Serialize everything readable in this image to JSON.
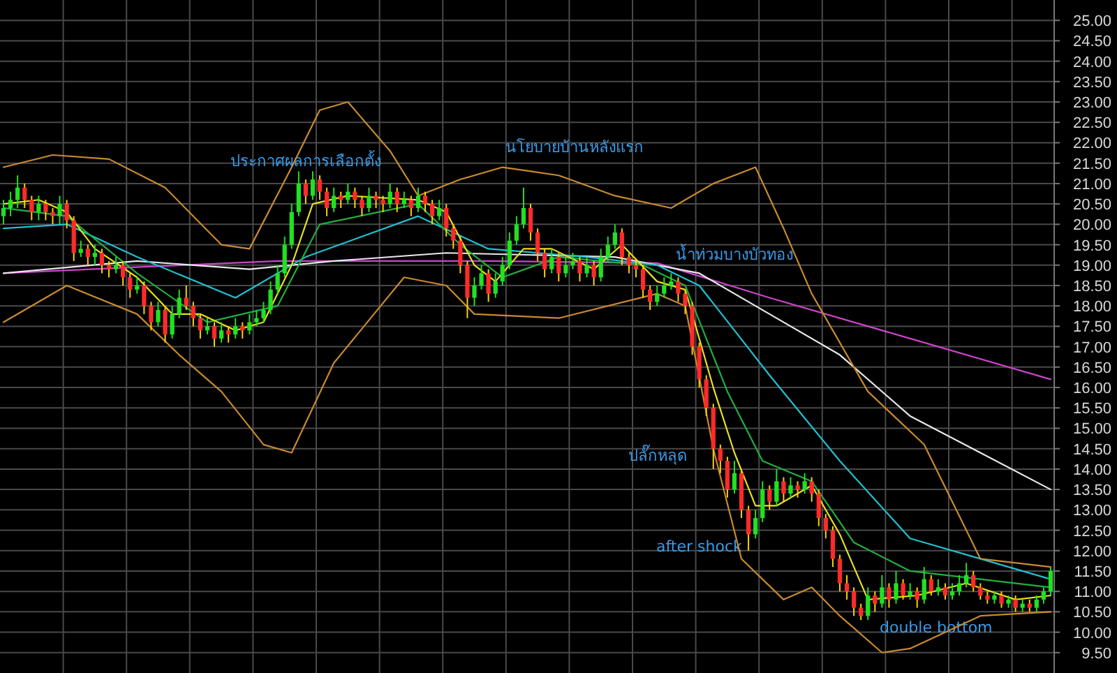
{
  "chart_data": {
    "type": "candlestick",
    "tick_labels": "y",
    "grid": true,
    "categories": [
      null,
      null,
      null,
      null,
      null,
      null,
      null,
      null,
      null,
      null,
      null,
      null,
      null,
      null,
      null,
      null,
      null,
      null,
      null,
      null,
      null,
      null,
      null,
      null,
      null,
      null,
      null,
      null,
      null,
      null,
      null,
      null,
      null,
      null,
      null,
      null,
      null,
      null,
      null,
      null,
      null,
      null,
      null,
      null,
      null,
      null,
      null,
      null,
      null,
      null,
      null,
      null,
      null,
      null,
      null,
      null,
      null,
      null,
      null,
      null,
      null,
      null,
      null,
      null,
      null,
      null,
      null,
      null,
      null,
      null,
      null,
      null,
      null,
      null,
      null,
      null,
      null,
      null,
      null,
      null,
      null,
      null,
      null,
      null,
      null,
      null,
      null,
      null,
      null,
      null,
      null,
      null,
      null,
      null,
      null,
      null,
      null,
      null,
      null,
      null,
      null,
      null,
      null,
      null,
      null,
      null,
      null,
      null,
      null,
      null,
      null,
      null,
      null,
      null,
      null,
      null,
      null,
      null,
      null,
      null,
      null,
      null,
      null,
      null,
      null,
      null,
      null,
      null,
      null,
      null,
      null,
      null,
      null,
      null,
      null,
      null,
      null,
      null,
      null,
      null,
      null,
      null,
      null,
      null,
      null,
      null,
      null,
      null,
      null,
      null
    ],
    "ohlc": [
      [
        20.2,
        20.6,
        20.0,
        20.4
      ],
      [
        20.4,
        20.8,
        20.2,
        20.6
      ],
      [
        20.6,
        21.2,
        20.4,
        20.9
      ],
      [
        20.9,
        21.0,
        20.4,
        20.6
      ],
      [
        20.6,
        20.7,
        20.1,
        20.3
      ],
      [
        20.3,
        20.7,
        20.1,
        20.5
      ],
      [
        20.5,
        20.6,
        20.1,
        20.3
      ],
      [
        20.3,
        20.4,
        20.0,
        20.2
      ],
      [
        20.2,
        20.7,
        20.0,
        20.5
      ],
      [
        20.5,
        20.6,
        19.9,
        20.1
      ],
      [
        20.1,
        20.2,
        19.1,
        19.3
      ],
      [
        19.3,
        19.6,
        19.2,
        19.4
      ],
      [
        19.4,
        19.5,
        19.0,
        19.2
      ],
      [
        19.2,
        19.5,
        19.0,
        19.3
      ],
      [
        19.3,
        19.4,
        18.8,
        19.0
      ],
      [
        19.0,
        19.1,
        18.7,
        18.9
      ],
      [
        18.9,
        19.2,
        18.8,
        19.0
      ],
      [
        19.0,
        19.1,
        18.5,
        18.7
      ],
      [
        18.7,
        18.8,
        18.2,
        18.4
      ],
      [
        18.4,
        18.7,
        18.3,
        18.5
      ],
      [
        18.5,
        18.6,
        17.8,
        18.0
      ],
      [
        18.0,
        18.1,
        17.4,
        17.6
      ],
      [
        17.6,
        18.1,
        17.5,
        17.9
      ],
      [
        17.9,
        18.0,
        17.1,
        17.3
      ],
      [
        17.3,
        18.0,
        17.2,
        17.8
      ],
      [
        17.8,
        18.4,
        17.7,
        18.2
      ],
      [
        18.2,
        18.5,
        17.9,
        18.0
      ],
      [
        18.0,
        18.1,
        17.5,
        17.7
      ],
      [
        17.7,
        17.8,
        17.2,
        17.4
      ],
      [
        17.4,
        17.7,
        17.3,
        17.5
      ],
      [
        17.5,
        17.6,
        17.0,
        17.2
      ],
      [
        17.2,
        17.6,
        17.1,
        17.4
      ],
      [
        17.4,
        17.5,
        17.1,
        17.3
      ],
      [
        17.3,
        17.7,
        17.2,
        17.5
      ],
      [
        17.5,
        17.6,
        17.2,
        17.4
      ],
      [
        17.4,
        17.8,
        17.3,
        17.6
      ],
      [
        17.6,
        17.9,
        17.5,
        17.7
      ],
      [
        17.7,
        18.1,
        17.6,
        17.9
      ],
      [
        17.9,
        18.6,
        17.8,
        18.4
      ],
      [
        18.4,
        19.0,
        18.3,
        18.8
      ],
      [
        18.8,
        19.7,
        18.7,
        19.5
      ],
      [
        19.5,
        20.5,
        19.4,
        20.3
      ],
      [
        20.3,
        21.3,
        20.2,
        21.0
      ],
      [
        21.0,
        21.1,
        20.5,
        20.7
      ],
      [
        20.7,
        21.3,
        20.6,
        21.1
      ],
      [
        21.1,
        21.2,
        20.6,
        20.8
      ],
      [
        20.8,
        20.9,
        20.2,
        20.4
      ],
      [
        20.4,
        20.9,
        20.3,
        20.7
      ],
      [
        20.7,
        20.8,
        20.4,
        20.6
      ],
      [
        20.6,
        21.0,
        20.5,
        20.8
      ],
      [
        20.8,
        20.9,
        20.4,
        20.6
      ],
      [
        20.6,
        20.7,
        20.2,
        20.4
      ],
      [
        20.4,
        20.9,
        20.3,
        20.7
      ],
      [
        20.7,
        20.8,
        20.4,
        20.6
      ],
      [
        20.6,
        20.7,
        20.3,
        20.5
      ],
      [
        20.5,
        21.0,
        20.4,
        20.8
      ],
      [
        20.8,
        20.9,
        20.3,
        20.5
      ],
      [
        20.5,
        20.8,
        20.4,
        20.6
      ],
      [
        20.6,
        20.7,
        20.2,
        20.4
      ],
      [
        20.4,
        20.9,
        20.3,
        20.7
      ],
      [
        20.7,
        20.8,
        20.3,
        20.5
      ],
      [
        20.5,
        20.6,
        20.0,
        20.2
      ],
      [
        20.2,
        20.6,
        20.1,
        20.4
      ],
      [
        20.4,
        20.5,
        19.7,
        19.9
      ],
      [
        19.9,
        20.0,
        19.4,
        19.6
      ],
      [
        19.6,
        19.7,
        18.8,
        19.0
      ],
      [
        19.0,
        19.1,
        17.7,
        18.2
      ],
      [
        18.2,
        18.7,
        18.0,
        18.5
      ],
      [
        18.5,
        19.0,
        18.4,
        18.8
      ],
      [
        18.8,
        18.9,
        18.1,
        18.3
      ],
      [
        18.3,
        18.8,
        18.2,
        18.6
      ],
      [
        18.6,
        19.2,
        18.5,
        19.0
      ],
      [
        19.0,
        19.8,
        18.9,
        19.6
      ],
      [
        19.6,
        20.2,
        19.5,
        20.0
      ],
      [
        20.0,
        20.9,
        19.9,
        20.4
      ],
      [
        20.4,
        20.5,
        19.6,
        19.8
      ],
      [
        19.8,
        19.9,
        19.1,
        19.3
      ],
      [
        19.3,
        19.4,
        18.7,
        18.9
      ],
      [
        18.9,
        19.4,
        18.8,
        19.2
      ],
      [
        19.2,
        19.3,
        18.6,
        18.8
      ],
      [
        18.8,
        19.2,
        18.7,
        19.0
      ],
      [
        19.0,
        19.3,
        18.9,
        19.1
      ],
      [
        19.1,
        19.2,
        18.6,
        18.8
      ],
      [
        18.8,
        19.2,
        18.7,
        19.0
      ],
      [
        19.0,
        19.1,
        18.5,
        18.7
      ],
      [
        18.7,
        19.4,
        18.6,
        19.2
      ],
      [
        19.2,
        19.7,
        19.1,
        19.5
      ],
      [
        19.5,
        20.0,
        19.4,
        19.8
      ],
      [
        19.8,
        19.9,
        19.0,
        19.2
      ],
      [
        19.2,
        19.3,
        18.8,
        19.0
      ],
      [
        19.0,
        19.1,
        18.7,
        18.9
      ],
      [
        18.9,
        19.0,
        18.2,
        18.4
      ],
      [
        18.4,
        18.5,
        17.9,
        18.1
      ],
      [
        18.1,
        18.5,
        18.0,
        18.3
      ],
      [
        18.3,
        18.7,
        18.2,
        18.5
      ],
      [
        18.5,
        18.8,
        18.4,
        18.6
      ],
      [
        18.6,
        18.7,
        18.1,
        18.3
      ],
      [
        18.3,
        18.4,
        17.8,
        18.0
      ],
      [
        18.0,
        18.1,
        16.8,
        17.0
      ],
      [
        17.0,
        17.1,
        16.0,
        16.2
      ],
      [
        16.2,
        16.3,
        15.3,
        15.5
      ],
      [
        15.5,
        15.6,
        14.0,
        14.5
      ],
      [
        14.5,
        14.6,
        13.9,
        14.2
      ],
      [
        14.2,
        14.3,
        13.3,
        13.5
      ],
      [
        13.5,
        14.2,
        13.4,
        13.9
      ],
      [
        13.9,
        14.0,
        12.8,
        13.0
      ],
      [
        13.0,
        13.1,
        12.0,
        12.4
      ],
      [
        12.4,
        13.0,
        12.3,
        12.8
      ],
      [
        12.8,
        13.7,
        12.7,
        13.5
      ],
      [
        13.5,
        13.6,
        13.0,
        13.2
      ],
      [
        13.2,
        14.0,
        13.1,
        13.7
      ],
      [
        13.7,
        13.8,
        13.2,
        13.4
      ],
      [
        13.4,
        13.8,
        13.3,
        13.6
      ],
      [
        13.6,
        13.7,
        13.3,
        13.5
      ],
      [
        13.5,
        13.9,
        13.4,
        13.7
      ],
      [
        13.7,
        13.8,
        13.2,
        13.4
      ],
      [
        13.4,
        13.5,
        12.6,
        12.8
      ],
      [
        12.8,
        12.9,
        12.3,
        12.5
      ],
      [
        12.5,
        12.6,
        11.6,
        11.8
      ],
      [
        11.8,
        11.9,
        11.0,
        11.2
      ],
      [
        11.2,
        11.4,
        10.8,
        11.0
      ],
      [
        11.0,
        11.1,
        10.4,
        10.6
      ],
      [
        10.6,
        10.7,
        10.3,
        10.4
      ],
      [
        10.4,
        11.1,
        10.3,
        10.9
      ],
      [
        10.9,
        11.0,
        10.5,
        10.7
      ],
      [
        10.7,
        11.4,
        10.6,
        11.1
      ],
      [
        11.1,
        11.2,
        10.6,
        10.8
      ],
      [
        10.8,
        11.5,
        10.7,
        11.2
      ],
      [
        11.2,
        11.3,
        10.8,
        10.9
      ],
      [
        10.9,
        11.2,
        10.8,
        11.0
      ],
      [
        11.0,
        11.1,
        10.6,
        10.8
      ],
      [
        10.8,
        11.6,
        10.7,
        11.3
      ],
      [
        11.3,
        11.4,
        10.9,
        11.0
      ],
      [
        11.0,
        11.3,
        10.9,
        11.1
      ],
      [
        11.1,
        11.2,
        10.8,
        10.9
      ],
      [
        10.9,
        11.2,
        10.8,
        11.0
      ],
      [
        11.0,
        11.4,
        10.9,
        11.2
      ],
      [
        11.2,
        11.7,
        11.1,
        11.4
      ],
      [
        11.4,
        11.5,
        11.0,
        11.1
      ],
      [
        11.1,
        11.2,
        10.8,
        10.9
      ],
      [
        10.9,
        11.0,
        10.7,
        10.8
      ],
      [
        10.8,
        11.0,
        10.7,
        10.9
      ],
      [
        10.9,
        11.0,
        10.6,
        10.7
      ],
      [
        10.7,
        10.9,
        10.6,
        10.8
      ],
      [
        10.8,
        10.9,
        10.5,
        10.6
      ],
      [
        10.6,
        10.8,
        10.5,
        10.7
      ],
      [
        10.7,
        10.8,
        10.5,
        10.6
      ],
      [
        10.6,
        10.9,
        10.5,
        10.8
      ],
      [
        10.8,
        11.1,
        10.7,
        11.0
      ],
      [
        11.0,
        11.6,
        10.9,
        11.5
      ]
    ],
    "series": [
      {
        "type": "line",
        "color": "#cc44cc",
        "values": [
          18.8,
          null,
          null,
          null,
          null,
          null,
          null,
          null,
          null,
          null,
          null,
          null,
          null,
          null,
          null,
          null,
          null,
          null,
          null,
          18.95,
          null,
          null,
          null,
          null,
          null,
          null,
          null,
          null,
          null,
          null,
          null,
          null,
          null,
          null,
          null,
          null,
          null,
          null,
          null,
          19.1,
          null,
          null,
          null,
          null,
          null,
          null,
          null,
          null,
          null,
          null,
          null,
          null,
          null,
          null,
          null,
          null,
          null,
          null,
          null,
          null,
          null,
          null,
          null,
          null,
          null,
          null,
          null,
          null,
          null,
          19.1,
          null,
          null,
          null,
          null,
          null,
          null,
          null,
          null,
          null,
          null,
          null,
          null,
          null,
          null,
          null,
          null,
          null,
          null,
          null,
          null,
          null,
          null,
          null,
          19.05,
          null,
          null,
          null,
          null,
          null,
          null,
          null,
          null,
          null,
          null,
          null,
          null,
          null,
          null,
          null,
          18.2,
          null,
          null,
          null,
          null,
          null,
          null,
          null,
          null,
          null,
          null,
          null,
          null,
          null,
          null,
          null,
          null,
          null,
          null,
          null,
          17.2,
          null,
          null,
          null,
          null,
          null,
          null,
          null,
          null,
          null,
          null,
          null,
          null,
          null,
          null,
          null,
          null,
          null,
          null,
          null,
          16.2
        ]
      },
      {
        "type": "line",
        "color": "#e8e8e8",
        "values": [
          18.8,
          null,
          null,
          null,
          null,
          null,
          null,
          null,
          null,
          null,
          null,
          null,
          null,
          null,
          null,
          null,
          null,
          null,
          null,
          19.1,
          null,
          null,
          null,
          null,
          null,
          null,
          null,
          null,
          null,
          null,
          null,
          null,
          null,
          null,
          null,
          18.9,
          null,
          null,
          null,
          null,
          null,
          null,
          null,
          null,
          null,
          null,
          null,
          19.1,
          null,
          null,
          null,
          null,
          null,
          null,
          null,
          null,
          null,
          null,
          null,
          null,
          null,
          null,
          null,
          19.3,
          null,
          null,
          null,
          null,
          null,
          null,
          null,
          null,
          null,
          null,
          null,
          null,
          null,
          null,
          null,
          null,
          null,
          null,
          null,
          null,
          null,
          null,
          null,
          19.2,
          null,
          null,
          null,
          null,
          null,
          null,
          null,
          null,
          null,
          null,
          null,
          18.8,
          null,
          null,
          null,
          null,
          null,
          null,
          null,
          null,
          null,
          17.8,
          null,
          null,
          null,
          null,
          null,
          null,
          null,
          null,
          null,
          16.8,
          null,
          null,
          null,
          null,
          null,
          null,
          null,
          null,
          null,
          15.3,
          null,
          null,
          null,
          null,
          null,
          null,
          null,
          null,
          null,
          14.4,
          null,
          null,
          null,
          null,
          null,
          null,
          null,
          null,
          null,
          13.5
        ]
      },
      {
        "type": "line",
        "color": "#20c0d0",
        "values": [
          19.9,
          null,
          null,
          null,
          null,
          null,
          null,
          null,
          null,
          20.0,
          null,
          null,
          null,
          null,
          null,
          null,
          null,
          null,
          null,
          19.2,
          null,
          null,
          null,
          null,
          null,
          null,
          null,
          null,
          null,
          null,
          null,
          null,
          null,
          18.2,
          null,
          null,
          null,
          null,
          null,
          null,
          null,
          null,
          null,
          19.2,
          null,
          null,
          null,
          null,
          null,
          null,
          null,
          null,
          null,
          null,
          null,
          null,
          null,
          null,
          null,
          20.2,
          null,
          null,
          null,
          null,
          null,
          null,
          null,
          null,
          null,
          19.4,
          null,
          null,
          null,
          null,
          null,
          null,
          null,
          null,
          null,
          null,
          null,
          null,
          null,
          19.2,
          null,
          null,
          null,
          null,
          null,
          null,
          null,
          null,
          null,
          19.0,
          null,
          null,
          null,
          null,
          null,
          18.5,
          null,
          null,
          null,
          null,
          null,
          null,
          null,
          null,
          null,
          16.3,
          null,
          null,
          null,
          null,
          null,
          null,
          null,
          null,
          null,
          14.2,
          null,
          null,
          null,
          null,
          null,
          null,
          null,
          null,
          null,
          12.3,
          null,
          null,
          null,
          null,
          null,
          null,
          null,
          null,
          null,
          11.8,
          null,
          null,
          null,
          null,
          null,
          null,
          null,
          null,
          null,
          11.3
        ]
      },
      {
        "type": "line",
        "color": "#20b040",
        "values": [
          20.4,
          null,
          null,
          null,
          null,
          null,
          null,
          null,
          null,
          20.2,
          null,
          null,
          null,
          null,
          null,
          null,
          null,
          null,
          null,
          18.8,
          null,
          null,
          null,
          null,
          null,
          null,
          null,
          null,
          null,
          17.6,
          null,
          null,
          null,
          null,
          null,
          null,
          null,
          null,
          null,
          18.0,
          null,
          null,
          null,
          null,
          null,
          20.0,
          null,
          null,
          null,
          null,
          null,
          null,
          null,
          null,
          null,
          null,
          null,
          null,
          null,
          20.5,
          null,
          null,
          null,
          null,
          null,
          19.5,
          null,
          null,
          null,
          null,
          null,
          18.7,
          null,
          null,
          null,
          null,
          null,
          null,
          null,
          19.2,
          null,
          null,
          null,
          null,
          null,
          null,
          null,
          null,
          null,
          null,
          null,
          19.0,
          null,
          null,
          null,
          null,
          null,
          18.5,
          null,
          null,
          null,
          null,
          null,
          15.9,
          null,
          null,
          null,
          null,
          14.2,
          null,
          null,
          null,
          null,
          null,
          null,
          13.7,
          null,
          null,
          null,
          null,
          null,
          12.2,
          null,
          null,
          null,
          null,
          null,
          null,
          null,
          11.5,
          null,
          null,
          null,
          null,
          null,
          null,
          null,
          null,
          null,
          11.3,
          null,
          null,
          null,
          null,
          null,
          null,
          null,
          null,
          null,
          11.1
        ]
      },
      {
        "type": "line",
        "color": "#e8e020",
        "values": [
          20.5,
          null,
          null,
          null,
          null,
          20.6,
          null,
          null,
          null,
          20.3,
          null,
          null,
          null,
          19.4,
          null,
          null,
          null,
          null,
          null,
          18.7,
          null,
          null,
          null,
          null,
          17.8,
          null,
          null,
          null,
          17.8,
          null,
          null,
          null,
          null,
          17.4,
          null,
          null,
          null,
          17.6,
          null,
          null,
          null,
          19.0,
          null,
          null,
          20.5,
          null,
          null,
          null,
          null,
          20.7,
          null,
          null,
          null,
          null,
          null,
          null,
          null,
          null,
          null,
          20.6,
          null,
          null,
          null,
          20.3,
          null,
          null,
          null,
          19.0,
          null,
          null,
          18.6,
          null,
          null,
          null,
          19.4,
          null,
          null,
          null,
          19.4,
          null,
          null,
          null,
          null,
          null,
          18.9,
          null,
          null,
          null,
          19.5,
          null,
          null,
          null,
          null,
          18.6,
          null,
          null,
          null,
          18.4,
          null,
          null,
          null,
          16.0,
          null,
          null,
          14.4,
          null,
          null,
          13.1,
          null,
          null,
          13.1,
          null,
          null,
          null,
          null,
          13.6,
          null,
          null,
          null,
          12.4,
          null,
          null,
          null,
          10.8,
          null,
          null,
          null,
          null,
          null,
          null,
          10.9,
          null,
          null,
          null,
          null,
          null,
          null,
          11.2,
          null,
          null,
          null,
          null,
          null,
          null,
          10.8,
          null,
          null,
          null,
          null,
          10.9
        ]
      },
      {
        "type": "line",
        "color": "#c88a30",
        "values": [
          21.4,
          null,
          null,
          null,
          null,
          null,
          null,
          21.7,
          null,
          null,
          null,
          null,
          null,
          null,
          null,
          21.6,
          null,
          null,
          null,
          null,
          null,
          null,
          null,
          20.9,
          null,
          null,
          null,
          null,
          null,
          null,
          null,
          19.5,
          null,
          null,
          null,
          19.4,
          null,
          null,
          null,
          null,
          null,
          21.4,
          null,
          null,
          null,
          22.8,
          null,
          null,
          null,
          23.0,
          null,
          null,
          null,
          null,
          null,
          21.8,
          null,
          null,
          null,
          20.7,
          null,
          null,
          null,
          null,
          null,
          21.1,
          null,
          null,
          null,
          null,
          null,
          21.4,
          null,
          null,
          null,
          null,
          null,
          null,
          null,
          21.2,
          null,
          null,
          null,
          null,
          null,
          null,
          null,
          20.7,
          null,
          null,
          null,
          null,
          null,
          null,
          null,
          20.4,
          null,
          null,
          null,
          null,
          null,
          21.0,
          null,
          null,
          null,
          null,
          null,
          21.4,
          null,
          null,
          null,
          19.9,
          null,
          null,
          null,
          18.3,
          null,
          null,
          null,
          null,
          null,
          null,
          null,
          15.9,
          null,
          null,
          null,
          null,
          null,
          null,
          null,
          14.6,
          null,
          null,
          null,
          null,
          null,
          null,
          null,
          11.8,
          null,
          null,
          null,
          null,
          null,
          null,
          null,
          null,
          null,
          11.6
        ]
      },
      {
        "type": "line",
        "color": "#c88a30",
        "values": [
          17.6,
          null,
          null,
          null,
          null,
          null,
          null,
          null,
          null,
          18.5,
          null,
          null,
          null,
          null,
          null,
          null,
          null,
          null,
          null,
          17.8,
          null,
          null,
          null,
          null,
          null,
          16.8,
          null,
          null,
          null,
          null,
          null,
          15.9,
          null,
          null,
          null,
          null,
          null,
          14.6,
          null,
          null,
          null,
          14.4,
          null,
          null,
          null,
          null,
          null,
          16.6,
          null,
          null,
          null,
          null,
          null,
          null,
          null,
          null,
          null,
          18.7,
          null,
          null,
          null,
          null,
          null,
          18.5,
          null,
          null,
          null,
          17.8,
          null,
          null,
          null,
          null,
          null,
          null,
          null,
          null,
          null,
          null,
          null,
          17.7,
          null,
          null,
          null,
          null,
          null,
          null,
          null,
          null,
          null,
          null,
          null,
          null,
          null,
          18.3,
          null,
          null,
          null,
          18.0,
          null,
          null,
          null,
          14.5,
          null,
          null,
          null,
          11.8,
          null,
          null,
          null,
          null,
          null,
          10.8,
          null,
          null,
          null,
          11.1,
          null,
          null,
          null,
          10.4,
          null,
          null,
          null,
          null,
          null,
          9.5,
          null,
          null,
          null,
          9.6,
          null,
          null,
          null,
          null,
          null,
          null,
          null,
          null,
          null,
          10.4,
          null,
          null,
          null,
          null,
          null,
          null,
          null,
          null,
          null,
          10.5
        ]
      }
    ],
    "ylim": [
      9,
      25.5
    ],
    "yticks": [
      {
        "value": 9.5,
        "label": "9.50"
      },
      {
        "value": 10,
        "label": "10.00"
      },
      {
        "value": 10.5,
        "label": "10.50"
      },
      {
        "value": 11,
        "label": "11.00"
      },
      {
        "value": 11.5,
        "label": "11.50"
      },
      {
        "value": 12,
        "label": "12.00"
      },
      {
        "value": 12.5,
        "label": "12.50"
      },
      {
        "value": 13,
        "label": "13.00"
      },
      {
        "value": 13.5,
        "label": "13.50"
      },
      {
        "value": 14,
        "label": "14.00"
      },
      {
        "value": 14.5,
        "label": "14.50"
      },
      {
        "value": 15,
        "label": "15.00"
      },
      {
        "value": 15.5,
        "label": "15.50"
      },
      {
        "value": 16,
        "label": "16.00"
      },
      {
        "value": 16.5,
        "label": "16.50"
      },
      {
        "value": 17,
        "label": "17.00"
      },
      {
        "value": 17.5,
        "label": "17.50"
      },
      {
        "value": 18,
        "label": "18.00"
      },
      {
        "value": 18.5,
        "label": "18.50"
      },
      {
        "value": 19,
        "label": "19.00"
      },
      {
        "value": 19.5,
        "label": "19.50"
      },
      {
        "value": 20,
        "label": "20.00"
      },
      {
        "value": 20.5,
        "label": "20.50"
      },
      {
        "value": 21,
        "label": "21.00"
      },
      {
        "value": 21.5,
        "label": "21.50"
      },
      {
        "value": 22,
        "label": "22.00"
      },
      {
        "value": 22.5,
        "label": "22.50"
      },
      {
        "value": 23,
        "label": "23.00"
      },
      {
        "value": 23.5,
        "label": "23.50"
      },
      {
        "value": 24,
        "label": "24.00"
      },
      {
        "value": 24.5,
        "label": "24.50"
      },
      {
        "value": 25,
        "label": "25.00"
      }
    ],
    "annotations": [
      "ประกาศผลการเลือกตั้ง",
      "นโยบายบ้านหลังแรก",
      "น้ำท่วมบางบัวทอง",
      "ปลั๊กหลุด",
      "after shock",
      "double bottom"
    ]
  }
}
